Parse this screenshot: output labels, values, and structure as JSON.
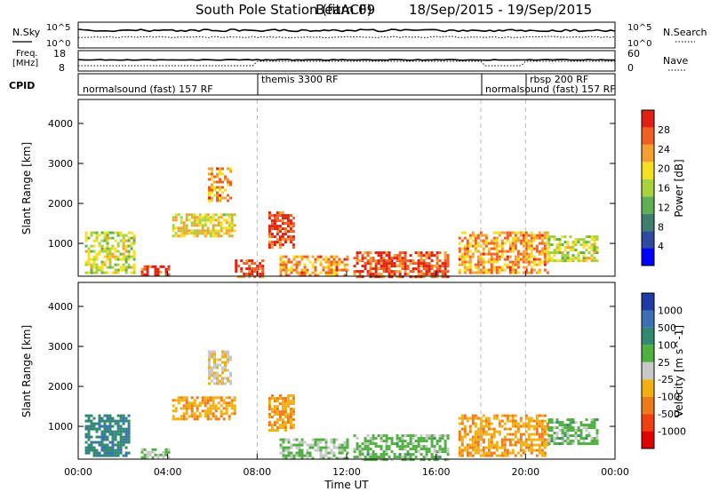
{
  "title": "South Pole Station (fitACF)",
  "beam": "Beam 09",
  "date_range": "18/Sep/2015 - 19/Sep/2015",
  "top_panel": {
    "left_label_1": "N.Sky",
    "left_label_2": "Freq.",
    "left_label_3": "[MHz]",
    "left_label_4": "CPID",
    "right_label_1": "N.Search",
    "right_label_2": "Nave",
    "noise_left_ticks": [
      "10^5",
      "10^0"
    ],
    "noise_right_ticks": [
      "10^5",
      "10^0"
    ],
    "freq_ticks": [
      "18",
      "8"
    ],
    "nave_ticks": [
      "60",
      "0"
    ]
  },
  "cpid_labels": [
    "normalsound (fast) 157 RF",
    "themis 3300 RF",
    "normalsound (fast) 157 RF",
    "rbsp 200 RF"
  ],
  "colorbars": {
    "power": {
      "label": "Power [dB]",
      "ticks": [
        "28",
        "24",
        "20",
        "16",
        "12",
        "8",
        "4"
      ],
      "colors": [
        "#0000ff",
        "#2d4aa0",
        "#3f7d6e",
        "#5fb050",
        "#a8d23c",
        "#f5e020",
        "#f5a030",
        "#f06020",
        "#e02010"
      ]
    },
    "velocity": {
      "label": "Velocity [m s^-1]",
      "ticks": [
        "1000",
        "500",
        "100",
        "25",
        "-25",
        "-100",
        "-500",
        "-1000"
      ],
      "colors": [
        "#1e3ca8",
        "#3b6fb6",
        "#2f8a6e",
        "#4fb040",
        "#c8c8c8",
        "#f2b010",
        "#f07a18",
        "#f04010",
        "#e00000"
      ]
    }
  },
  "chart_data": [
    {
      "type": "heatmap",
      "title": "South Pole Station (fitACF) Beam 09 18/Sep/2015 - 19/Sep/2015",
      "variable": "Power [dB]",
      "xlabel": "Time UT",
      "ylabel": "Slant Range [km]",
      "x_ticks": [
        "00:00",
        "04:00",
        "08:00",
        "12:00",
        "16:00",
        "20:00",
        "00:00"
      ],
      "y_ticks": [
        "1000",
        "2000",
        "3000",
        "4000"
      ],
      "xlim_hours": [
        0,
        24
      ],
      "ylim_km": [
        180,
        4600
      ],
      "color_range_db": [
        0,
        30
      ],
      "echo_regions": [
        {
          "t0": 0.3,
          "t1": 2.5,
          "r0": 300,
          "r1": 1300,
          "value": 16
        },
        {
          "t0": 2.8,
          "t1": 4.0,
          "r0": 200,
          "r1": 450,
          "value": 28
        },
        {
          "t0": 4.2,
          "t1": 7.0,
          "r0": 1200,
          "r1": 1750,
          "value": 18
        },
        {
          "t0": 5.8,
          "t1": 6.8,
          "r0": 2100,
          "r1": 2900,
          "value": 22
        },
        {
          "t0": 7.0,
          "t1": 8.2,
          "r0": 200,
          "r1": 600,
          "value": 26
        },
        {
          "t0": 8.5,
          "t1": 9.6,
          "r0": 900,
          "r1": 1800,
          "value": 26
        },
        {
          "t0": 9.0,
          "t1": 12.0,
          "r0": 200,
          "r1": 700,
          "value": 22
        },
        {
          "t0": 12.3,
          "t1": 16.5,
          "r0": 200,
          "r1": 800,
          "value": 26
        },
        {
          "t0": 17.0,
          "t1": 21.0,
          "r0": 300,
          "r1": 1300,
          "value": 22
        },
        {
          "t0": 21.0,
          "t1": 23.2,
          "r0": 600,
          "r1": 1200,
          "value": 16
        }
      ]
    },
    {
      "type": "heatmap",
      "variable": "Velocity [m s^-1]",
      "xlabel": "Time UT",
      "ylabel": "Slant Range [km]",
      "x_ticks": [
        "00:00",
        "04:00",
        "08:00",
        "12:00",
        "16:00",
        "20:00",
        "00:00"
      ],
      "y_ticks": [
        "1000",
        "2000",
        "3000",
        "4000"
      ],
      "xlim_hours": [
        0,
        24
      ],
      "ylim_km": [
        180,
        4600
      ],
      "color_range": [
        -1000,
        1000
      ],
      "echo_regions": [
        {
          "t0": 0.3,
          "t1": 2.3,
          "r0": 300,
          "r1": 1300,
          "value": 500
        },
        {
          "t0": 2.8,
          "t1": 4.0,
          "r0": 200,
          "r1": 450,
          "value": 100
        },
        {
          "t0": 4.2,
          "t1": 7.0,
          "r0": 1200,
          "r1": 1750,
          "value": -300
        },
        {
          "t0": 5.8,
          "t1": 6.8,
          "r0": 2100,
          "r1": 2900,
          "value": -100
        },
        {
          "t0": 8.5,
          "t1": 9.6,
          "r0": 900,
          "r1": 1800,
          "value": -300
        },
        {
          "t0": 9.0,
          "t1": 12.0,
          "r0": 200,
          "r1": 700,
          "value": 100
        },
        {
          "t0": 12.3,
          "t1": 16.5,
          "r0": 200,
          "r1": 800,
          "value": 200
        },
        {
          "t0": 17.0,
          "t1": 21.0,
          "r0": 300,
          "r1": 1300,
          "value": -300
        },
        {
          "t0": 21.0,
          "t1": 23.2,
          "r0": 600,
          "r1": 1200,
          "value": 200
        }
      ]
    }
  ]
}
